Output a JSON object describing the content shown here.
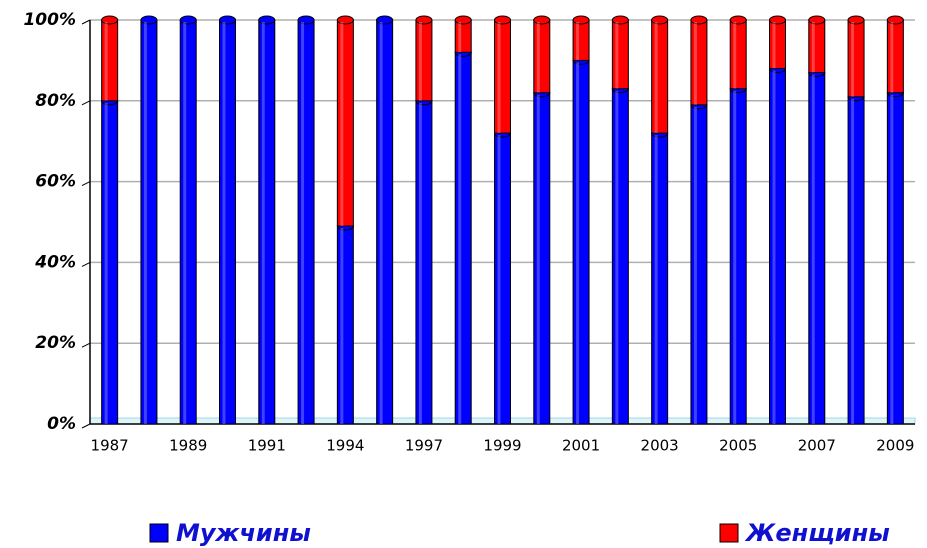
{
  "chart_data": {
    "type": "bar",
    "stacked": true,
    "categories": [
      "1987",
      null,
      "1989",
      null,
      "1991",
      null,
      "1994",
      null,
      "1997",
      null,
      "1999",
      null,
      "2001",
      null,
      "2003",
      null,
      "2005",
      null,
      "2007",
      null,
      "2009"
    ],
    "series": [
      {
        "name": "Мужчины",
        "color": "#0000ff",
        "values": [
          80,
          100,
          100,
          100,
          100,
          100,
          49,
          100,
          80,
          92,
          72,
          82,
          90,
          83,
          72,
          79,
          83,
          88,
          87,
          81,
          82
        ]
      },
      {
        "name": "Женщины",
        "color": "#ff0000",
        "values": [
          20,
          0,
          0,
          0,
          0,
          0,
          51,
          0,
          20,
          8,
          28,
          18,
          10,
          17,
          28,
          21,
          17,
          12,
          13,
          19,
          18
        ]
      }
    ],
    "ylim": [
      0,
      100
    ],
    "yticks": [
      {
        "value": 0,
        "label": "0%"
      },
      {
        "value": 20,
        "label": "20%"
      },
      {
        "value": 40,
        "label": "40%"
      },
      {
        "value": 60,
        "label": "60%"
      },
      {
        "value": 80,
        "label": "80%"
      },
      {
        "value": 100,
        "label": "100%"
      }
    ],
    "grid": true,
    "legend": "bottom"
  }
}
